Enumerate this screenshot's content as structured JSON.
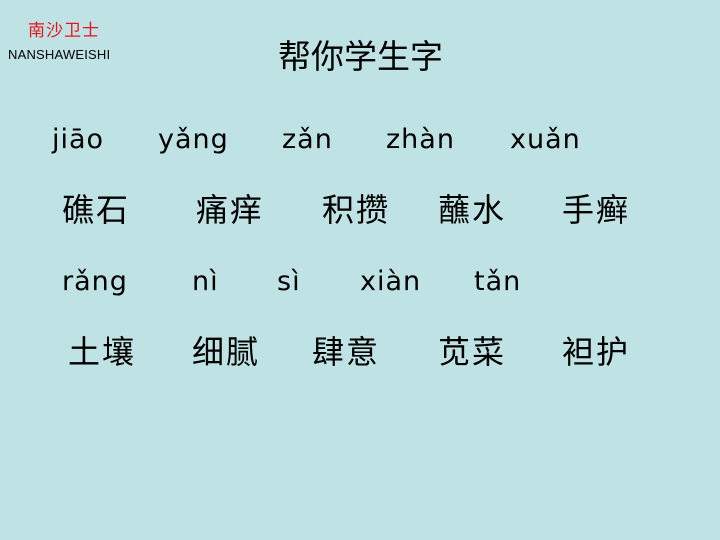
{
  "brand": {
    "name_cn": "南沙卫士",
    "name_en": "NANSHAWEISHI"
  },
  "title": "帮你学生字",
  "row1": {
    "pinyin": [
      "jiāo",
      "yǎng",
      "zǎn",
      "zhàn",
      "xuǎn"
    ],
    "words": [
      "礁石",
      "痛痒",
      "积攒",
      "蘸水",
      "手癣"
    ]
  },
  "row2": {
    "pinyin": [
      "rǎng",
      "nì",
      "sì",
      "xiàn",
      "tǎn"
    ],
    "words": [
      "土壤",
      "细腻",
      "肆意",
      "苋菜",
      "袒护"
    ]
  }
}
